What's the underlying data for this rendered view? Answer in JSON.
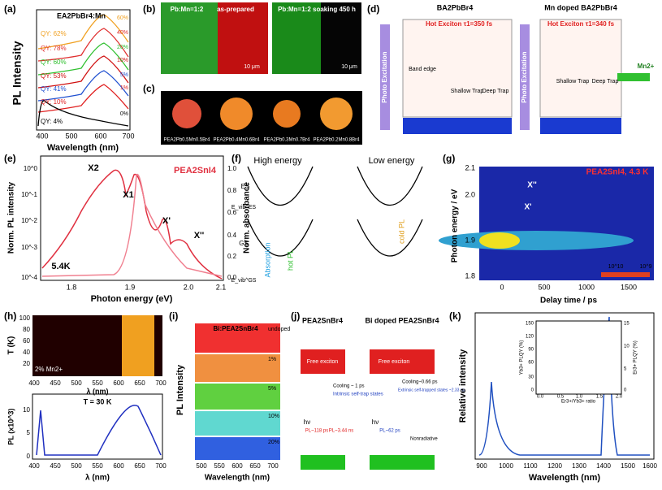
{
  "panels": {
    "a": {
      "label": "(a)",
      "title": "EA2PbBr4:Mn",
      "ylabel": "PL Intensity",
      "xlabel": "Wavelength (nm)",
      "xticks": [
        "400",
        "500",
        "600",
        "700"
      ],
      "qy": [
        "QY: 62%",
        "QY: 78%",
        "QY: 60%",
        "QY: 53%",
        "QY: 41%",
        "QY: 10%",
        "QY: 4%"
      ],
      "doping": [
        "60%",
        "40%",
        "20%",
        "10%",
        "5%",
        "1%",
        "0%"
      ]
    },
    "b": {
      "label": "(b)",
      "left": "Pb:Mn=1:2",
      "left_state": "as-prepared",
      "right": "Pb:Mn=1:2  soaking 450 h",
      "scale": [
        "10 μm",
        "10 μm"
      ]
    },
    "c": {
      "label": "(c)",
      "samples": [
        "PEA2Pb0.5Mn0.5Br4",
        "PEA2Pb0.4Mn0.6Br4",
        "PEA2Pb0.3Mn0.7Br4",
        "PEA2Pb0.2Mn0.8Br4"
      ]
    },
    "d": {
      "label": "(d)",
      "left_title": "BA2PbBr4",
      "right_title": "Mn doped BA2PbBr4",
      "left_hot": "Hot Exciton τ1=350 fs",
      "right_hot": "Hot Exciton τ1=340 fs",
      "excitation": [
        "Photo Excitation",
        "Photo Excitation"
      ],
      "states": [
        "Band edge",
        "Shallow Trap",
        "Deep Trap",
        "Shallow Trap",
        "Deep Trap"
      ],
      "mn": "Mn2+"
    },
    "e": {
      "label": "(e)",
      "ylabel": "Norm. PL intensity",
      "y2label": "Norm. absorbance",
      "xlabel": "Photon energy (eV)",
      "material": "PEA2SnI4",
      "temp": "5.4K",
      "xticks": [
        "1.8",
        "1.9",
        "2.0",
        "2.1"
      ],
      "yticks": [
        "10^0",
        "10^-1",
        "10^-2",
        "10^-3",
        "10^-4"
      ],
      "y2ticks": [
        "1.0",
        "0.8",
        "0.6",
        "0.4",
        "0.2",
        "0.0"
      ],
      "peaks": [
        "X2",
        "X1",
        "X'",
        "X''"
      ]
    },
    "f": {
      "label": "(f)",
      "high": "High energy",
      "low": "Low energy",
      "es": "ES",
      "gs": "GS",
      "abs": "Absorption",
      "hot": "hot PL",
      "cold": "cold PL",
      "evib_es": "E_vib^ES",
      "evib_gs": "E_vib^GS"
    },
    "g": {
      "label": "(g)",
      "title": "PEA2SnI4, 4.3 K",
      "peaks": [
        "X''",
        "X'"
      ],
      "ylabel": "Photon energy / eV",
      "xlabel": "Delay time / ps",
      "xticks": [
        "0",
        "500",
        "1000",
        "1500"
      ],
      "yticks": [
        "2.1",
        "2.0",
        "1.9",
        "1.8"
      ],
      "cbar": [
        "10^10",
        "10^9"
      ]
    },
    "h": {
      "label": "(h)",
      "ylabel_top": "T (K)",
      "yticks_top": [
        "100",
        "80",
        "60",
        "40",
        "20"
      ],
      "xlabel": "λ (nm)",
      "xticks": [
        "400",
        "450",
        "500",
        "550",
        "600",
        "650",
        "700"
      ],
      "mn": "2% Mn2+",
      "temp": "T = 30 K",
      "ylabel_bottom": "PL (x10^3)",
      "yticks_bottom": [
        "10",
        "5",
        "0"
      ]
    },
    "i": {
      "label": "(i)",
      "title": "Bi:PEA2SnBr4",
      "ylabel": "PL Intensity",
      "xlabel": "Wavelength (nm)",
      "xticks": [
        "500",
        "550",
        "600",
        "650",
        "700"
      ],
      "legend": [
        "undoped",
        "1%",
        "5%",
        "10%",
        "20%"
      ]
    },
    "j": {
      "label": "(j)",
      "left_title": "PEA2SnBr4",
      "right_title": "Bi doped PEA2SnBr4",
      "free": [
        "Free exciton",
        "Free exciton"
      ],
      "hv": [
        "hν",
        "hν"
      ],
      "left_cool": "Cooling ~ 1 ps",
      "left_trap": "Intrinsic self-trap states",
      "left_pl": [
        "PL~118 ps",
        "PL~3.44 ns"
      ],
      "right_cool": "Cooling~0.66 ps",
      "right_trap": "Extrinsic self-trapped states ~2.33 ns",
      "right_pl": "PL~62 ps",
      "nonrad": "Nonradiative"
    },
    "k": {
      "label": "(k)",
      "ylabel": "Relative intensity",
      "xlabel": "Wavelength (nm)",
      "xticks": [
        "900",
        "1000",
        "1100",
        "1200",
        "1300",
        "1400",
        "1500",
        "1600"
      ],
      "inset_y": "Yb3+ PLQY (%)",
      "inset_y2": "Er3+ PLQY (%)",
      "inset_x": "Er3+/Yb3+ ratio",
      "inset_xticks": [
        "0.0",
        "0.5",
        "1.0",
        "1.5",
        "2.0"
      ],
      "inset_yticks": [
        "150",
        "120",
        "90",
        "60",
        "30",
        "0"
      ],
      "inset_y2ticks": [
        "15",
        "10",
        "5",
        "0"
      ]
    }
  }
}
